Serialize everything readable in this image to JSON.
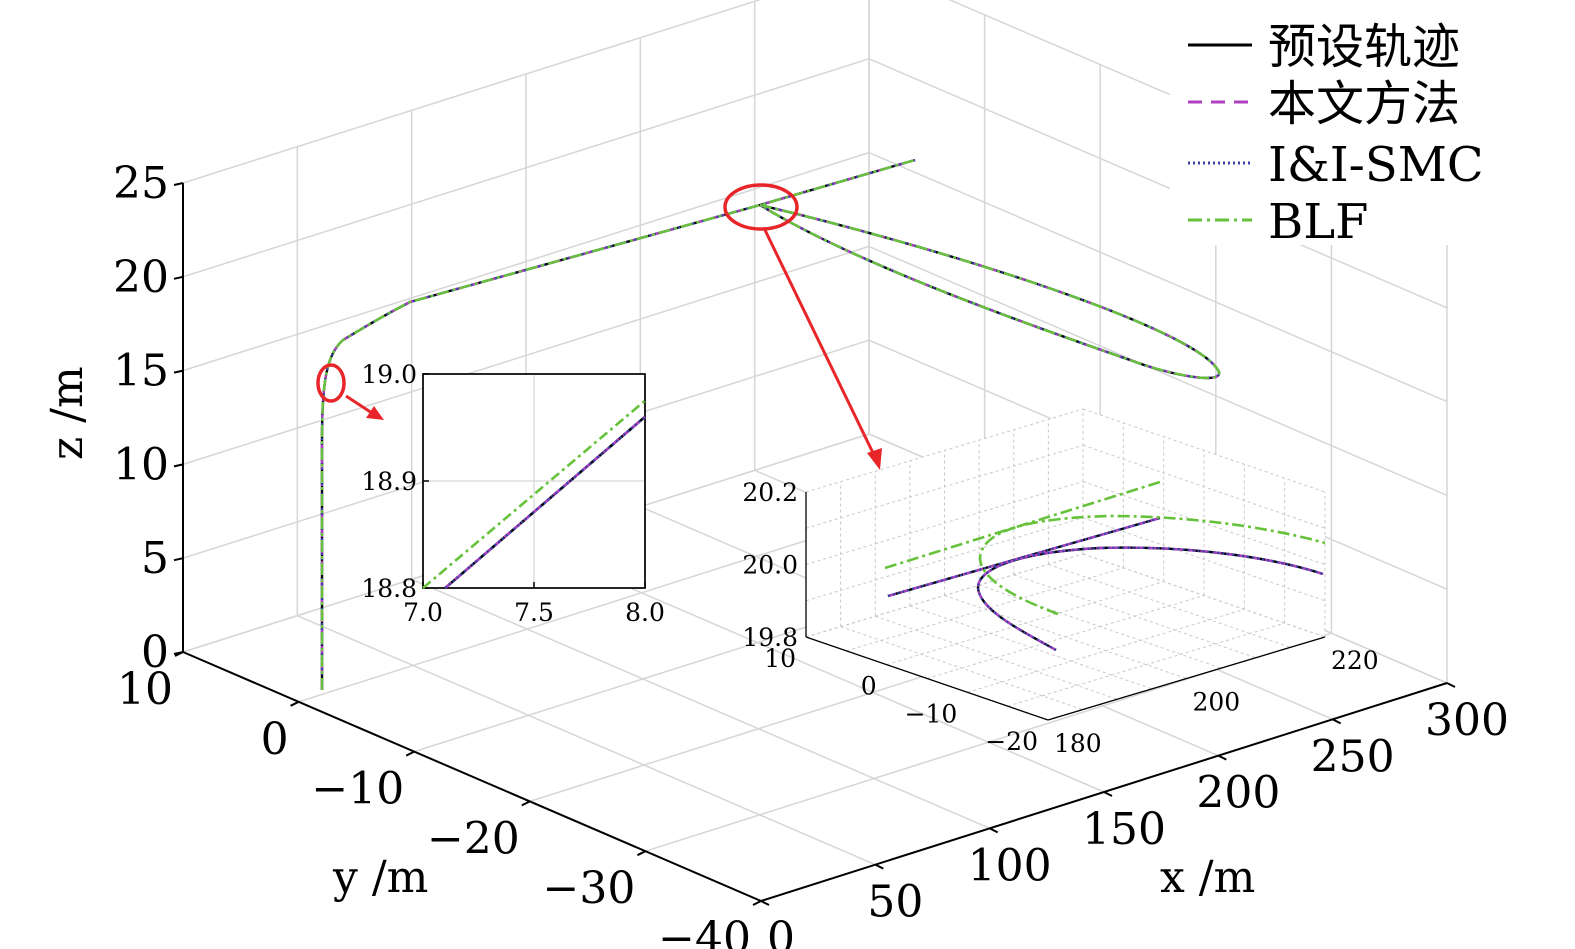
{
  "chart_data": [
    {
      "type": "line",
      "dimensions": 3,
      "xlabel": "x /m",
      "ylabel": "y /m",
      "zlabel": "z /m",
      "xlim": [
        0,
        300
      ],
      "ylim": [
        -40,
        10
      ],
      "zlim": [
        0,
        25
      ],
      "x_ticks": [
        "0",
        "50",
        "100",
        "150",
        "200",
        "250",
        "300"
      ],
      "y_ticks": [
        "10",
        "0",
        "−10",
        "−20",
        "−30",
        "−40"
      ],
      "z_ticks": [
        "0",
        "5",
        "10",
        "15",
        "20",
        "25"
      ],
      "grid": true,
      "legend_position": "top-right",
      "series": [
        {
          "name": "预设轨迹",
          "color": "#000000",
          "style": "solid"
        },
        {
          "name": "本文方法",
          "color": "#b040c0",
          "style": "dashed"
        },
        {
          "name": "I&I-SMC",
          "color": "#3a40a8",
          "style": "dotted"
        },
        {
          "name": "BLF",
          "color": "#66c23a",
          "style": "dashdot"
        }
      ],
      "trajectory": {
        "description_points": [
          {
            "x": 0,
            "y": 0,
            "z": 0
          },
          {
            "x": 7.5,
            "y": 0,
            "z": 18.85
          },
          {
            "x": 60,
            "y": 0,
            "z": 20
          },
          {
            "x": 200,
            "y": 0,
            "z": 20
          },
          {
            "x": 300,
            "y": 0,
            "z": 20
          }
        ]
      }
    },
    {
      "type": "line",
      "inset": "left",
      "xlim": [
        7.0,
        8.0
      ],
      "ylim": [
        18.8,
        19.0
      ],
      "x_ticks": [
        "7.0",
        "7.5",
        "8.0"
      ],
      "y_ticks": [
        "18.8",
        "18.9",
        "19.0"
      ],
      "grid": true,
      "series": [
        {
          "name": "预设轨迹",
          "x": [
            7.1,
            8.0
          ],
          "y": [
            18.8,
            18.96
          ]
        },
        {
          "name": "本文方法",
          "x": [
            7.1,
            8.0
          ],
          "y": [
            18.8,
            18.96
          ]
        },
        {
          "name": "I&I-SMC",
          "x": [
            7.1,
            8.0
          ],
          "y": [
            18.8,
            18.96
          ]
        },
        {
          "name": "BLF",
          "x": [
            7.0,
            8.0
          ],
          "y": [
            18.8,
            18.975
          ]
        }
      ]
    },
    {
      "type": "line",
      "inset": "right-3d",
      "xlim": [
        180,
        220
      ],
      "ylim": [
        -20,
        10
      ],
      "zlim": [
        19.8,
        20.2
      ],
      "x_ticks": [
        "180",
        "200",
        "220"
      ],
      "y_ticks": [
        "10",
        "0",
        "−10",
        "−20"
      ],
      "z_ticks": [
        "19.8",
        "20.0",
        "20.2"
      ],
      "grid": true
    }
  ]
}
